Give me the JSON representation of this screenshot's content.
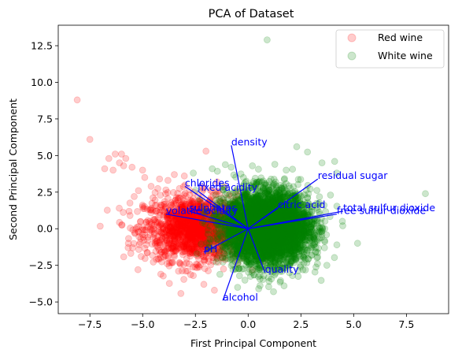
{
  "chart_data": {
    "type": "scatter",
    "title": "PCA of Dataset",
    "xlabel": "First Principal Component",
    "ylabel": "Second Principal Component",
    "xlim": [
      -9.0,
      9.5
    ],
    "ylim": [
      -5.8,
      13.9
    ],
    "xticks": [
      -7.5,
      -5.0,
      -2.5,
      0.0,
      2.5,
      5.0,
      7.5
    ],
    "xtick_labels": [
      "−7.5",
      "−5.0",
      "−2.5",
      "0.0",
      "2.5",
      "5.0",
      "7.5"
    ],
    "yticks": [
      -5.0,
      -2.5,
      0.0,
      2.5,
      5.0,
      7.5,
      10.0,
      12.5
    ],
    "ytick_labels": [
      "−5.0",
      "−2.5",
      "0.0",
      "2.5",
      "5.0",
      "7.5",
      "10.0",
      "12.5"
    ],
    "grid": false,
    "legend_position": "top-right",
    "series": [
      {
        "name": "Red wine",
        "color": "#ff0000",
        "opacity": 0.2,
        "center": [
          -2.5,
          0.0
        ],
        "spread": [
          1.2,
          1.1
        ],
        "count": 1599,
        "outliers": [
          [
            -8.1,
            8.8
          ],
          [
            -7.5,
            6.1
          ],
          [
            -6.6,
            4.8
          ],
          [
            -6.3,
            5.1
          ],
          [
            -6.0,
            5.1
          ],
          [
            -5.8,
            4.8
          ],
          [
            -6.1,
            4.5
          ],
          [
            -6.8,
            4.1
          ],
          [
            -6.4,
            4.0
          ],
          [
            -5.9,
            4.3
          ],
          [
            -5.5,
            4.2
          ],
          [
            -5.0,
            4.0
          ],
          [
            -5.2,
            2.6
          ],
          [
            -5.4,
            2.2
          ],
          [
            -5.6,
            0.9
          ],
          [
            -5.1,
            0.5
          ],
          [
            -5.0,
            1.5
          ],
          [
            -4.6,
            2.9
          ],
          [
            -4.9,
            3.5
          ],
          [
            -2.0,
            5.3
          ],
          [
            -3.5,
            3.7
          ],
          [
            -4.2,
            3.4
          ],
          [
            -3.8,
            3.3
          ],
          [
            -4.5,
            -0.6
          ],
          [
            -4.3,
            -1.2
          ],
          [
            -3.8,
            -2.0
          ],
          [
            -3.3,
            -2.9
          ],
          [
            -2.6,
            -3.2
          ],
          [
            -2.1,
            -3.8
          ],
          [
            -1.6,
            -4.2
          ]
        ]
      },
      {
        "name": "White wine",
        "color": "#008000",
        "opacity": 0.2,
        "center": [
          0.9,
          0.1
        ],
        "spread": [
          1.0,
          1.2
        ],
        "count": 4898,
        "outliers": [
          [
            0.9,
            12.9
          ],
          [
            8.4,
            2.4
          ],
          [
            2.3,
            5.6
          ],
          [
            3.5,
            4.5
          ],
          [
            4.1,
            4.6
          ],
          [
            1.8,
            4.0
          ],
          [
            4.2,
            3.8
          ],
          [
            3.9,
            2.3
          ],
          [
            3.6,
            1.6
          ],
          [
            3.1,
            0.3
          ],
          [
            0.2,
            4.3
          ],
          [
            -0.8,
            4.2
          ],
          [
            -1.7,
            4.1
          ],
          [
            -2.6,
            3.8
          ],
          [
            1.7,
            -3.9
          ],
          [
            1.2,
            -4.3
          ],
          [
            0.5,
            -4.1
          ],
          [
            -0.5,
            -4.0
          ],
          [
            2.1,
            -3.2
          ],
          [
            2.6,
            -2.8
          ],
          [
            3.0,
            -1.8
          ],
          [
            -2.3,
            2.0
          ],
          [
            -1.9,
            1.2
          ]
        ]
      }
    ],
    "loadings": [
      {
        "name": "density",
        "x": -0.8,
        "y": 5.7
      },
      {
        "name": "residual sugar",
        "x": 3.3,
        "y": 3.4
      },
      {
        "name": "chlorides",
        "x": -3.0,
        "y": 2.9
      },
      {
        "name": "fixed acidity",
        "x": -2.4,
        "y": 2.6
      },
      {
        "name": "total sulfur dioxide",
        "x": 4.5,
        "y": 1.2
      },
      {
        "name": "free sulfur dioxide",
        "x": 4.2,
        "y": 1.0
      },
      {
        "name": "citric acid",
        "x": 1.4,
        "y": 1.4
      },
      {
        "name": "sulphates",
        "x": -2.8,
        "y": 1.2
      },
      {
        "name": "volatile acidity",
        "x": -3.9,
        "y": 1.0
      },
      {
        "name": "pH",
        "x": -2.1,
        "y": -1.6
      },
      {
        "name": "quality",
        "x": 0.8,
        "y": -3.0
      },
      {
        "name": "alcohol",
        "x": -1.2,
        "y": -4.9
      }
    ],
    "loading_color": "#0000ff"
  }
}
